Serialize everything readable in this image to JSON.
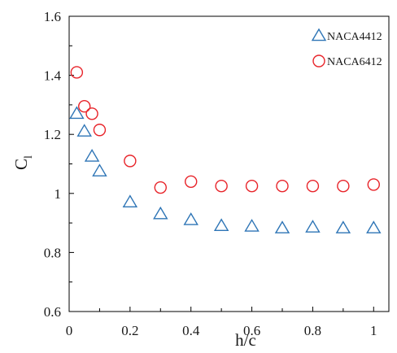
{
  "chart_data": {
    "type": "scatter",
    "title": "",
    "xlabel": "h/c",
    "ylabel": "C",
    "ylabel_subscript": "l",
    "xlim": [
      0,
      1.05
    ],
    "ylim": [
      0.6,
      1.6
    ],
    "x_ticks": [
      0,
      0.2,
      0.4,
      0.6,
      0.8,
      1
    ],
    "x_tick_labels": [
      "0",
      "0.2",
      "0.4",
      "0.6",
      "0.8",
      "1"
    ],
    "y_ticks": [
      0.6,
      0.8,
      1,
      1.2,
      1.4,
      1.6
    ],
    "y_tick_labels": [
      "0.6",
      "0.8",
      "1",
      "1.2",
      "1.4",
      "1.6"
    ],
    "grid": false,
    "legend_position": "top-right",
    "series": [
      {
        "name": "NACA4412",
        "marker": "triangle",
        "color": "#2e75b6",
        "x": [
          0.025,
          0.05,
          0.075,
          0.1,
          0.2,
          0.3,
          0.4,
          0.5,
          0.6,
          0.7,
          0.8,
          0.9,
          1.0
        ],
        "y": [
          1.27,
          1.21,
          1.125,
          1.075,
          0.97,
          0.93,
          0.91,
          0.89,
          0.888,
          0.882,
          0.885,
          0.882,
          0.882
        ]
      },
      {
        "name": "NACA6412",
        "marker": "circle",
        "color": "#e8242a",
        "x": [
          0.025,
          0.05,
          0.075,
          0.1,
          0.2,
          0.3,
          0.4,
          0.5,
          0.6,
          0.7,
          0.8,
          0.9,
          1.0
        ],
        "y": [
          1.41,
          1.295,
          1.27,
          1.215,
          1.11,
          1.02,
          1.04,
          1.025,
          1.025,
          1.025,
          1.025,
          1.025,
          1.03
        ]
      }
    ]
  }
}
